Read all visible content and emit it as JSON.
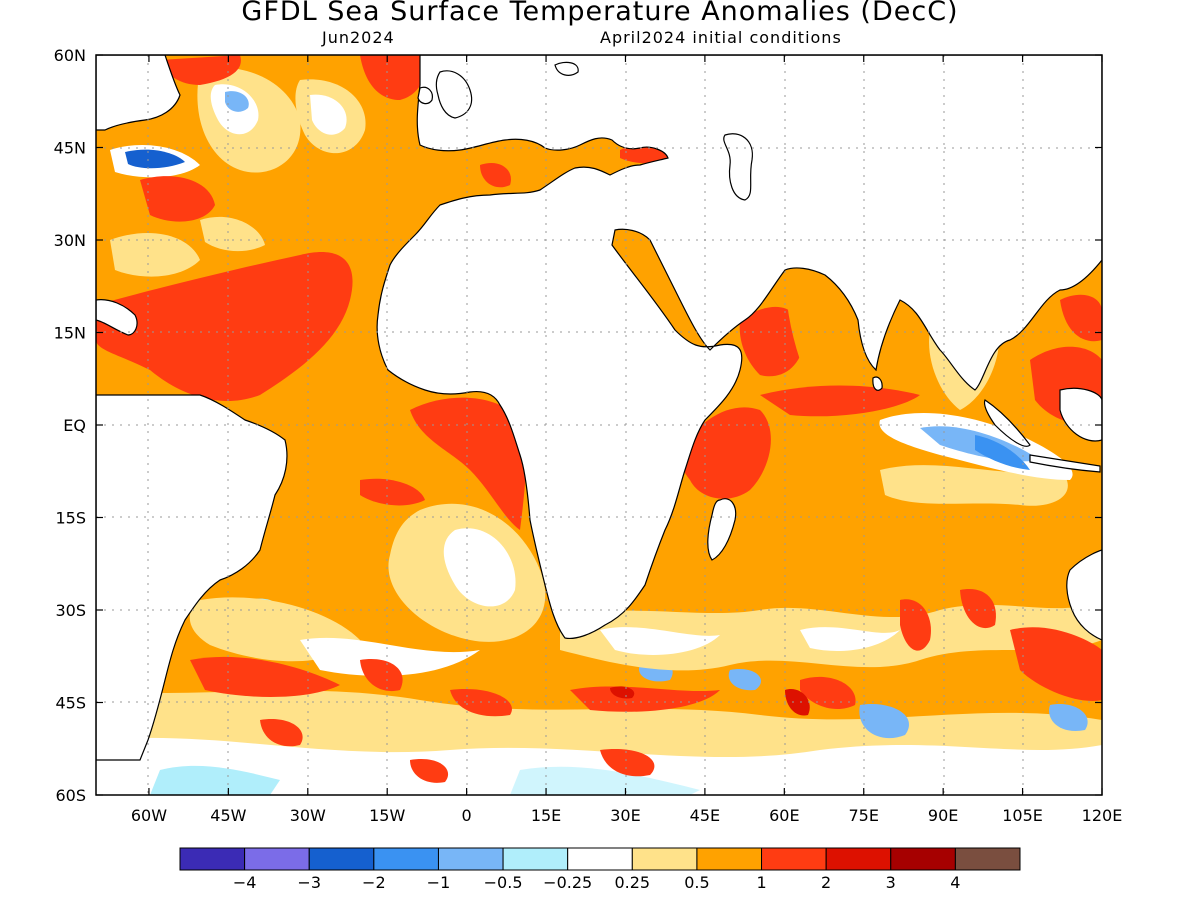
{
  "title": "GFDL Sea Surface Temperature Anomalies (DecC)",
  "forecast_month": "Jun2024",
  "initial_conditions": "April2024 initial conditions",
  "lat_labels": [
    "60N",
    "45N",
    "30N",
    "15N",
    "EQ",
    "15S",
    "30S",
    "45S",
    "60S"
  ],
  "lon_labels": [
    "60W",
    "45W",
    "30W",
    "15W",
    "0",
    "15E",
    "30E",
    "45E",
    "60E",
    "75E",
    "90E",
    "105E",
    "120E"
  ],
  "colorbar": {
    "colors": [
      "#3b2bb5",
      "#7b6ce8",
      "#1560cf",
      "#3a92f2",
      "#78b6f7",
      "#b0eefb",
      "#ffffff",
      "#ffe28a",
      "#ffa200",
      "#ff3c12",
      "#dd1100",
      "#a60000",
      "#7a4e3f"
    ],
    "labels": [
      "−4",
      "−3",
      "−2",
      "−1",
      "−0.5",
      "−0.25",
      "0.25",
      "0.5",
      "1",
      "2",
      "3",
      "4"
    ]
  },
  "map_data": {
    "lon_range": [
      -70,
      120
    ],
    "lat_range": [
      -60,
      60
    ],
    "grid_spacing_deg": 15,
    "land_color": "#ffffff",
    "coastline_color": "#000000"
  }
}
